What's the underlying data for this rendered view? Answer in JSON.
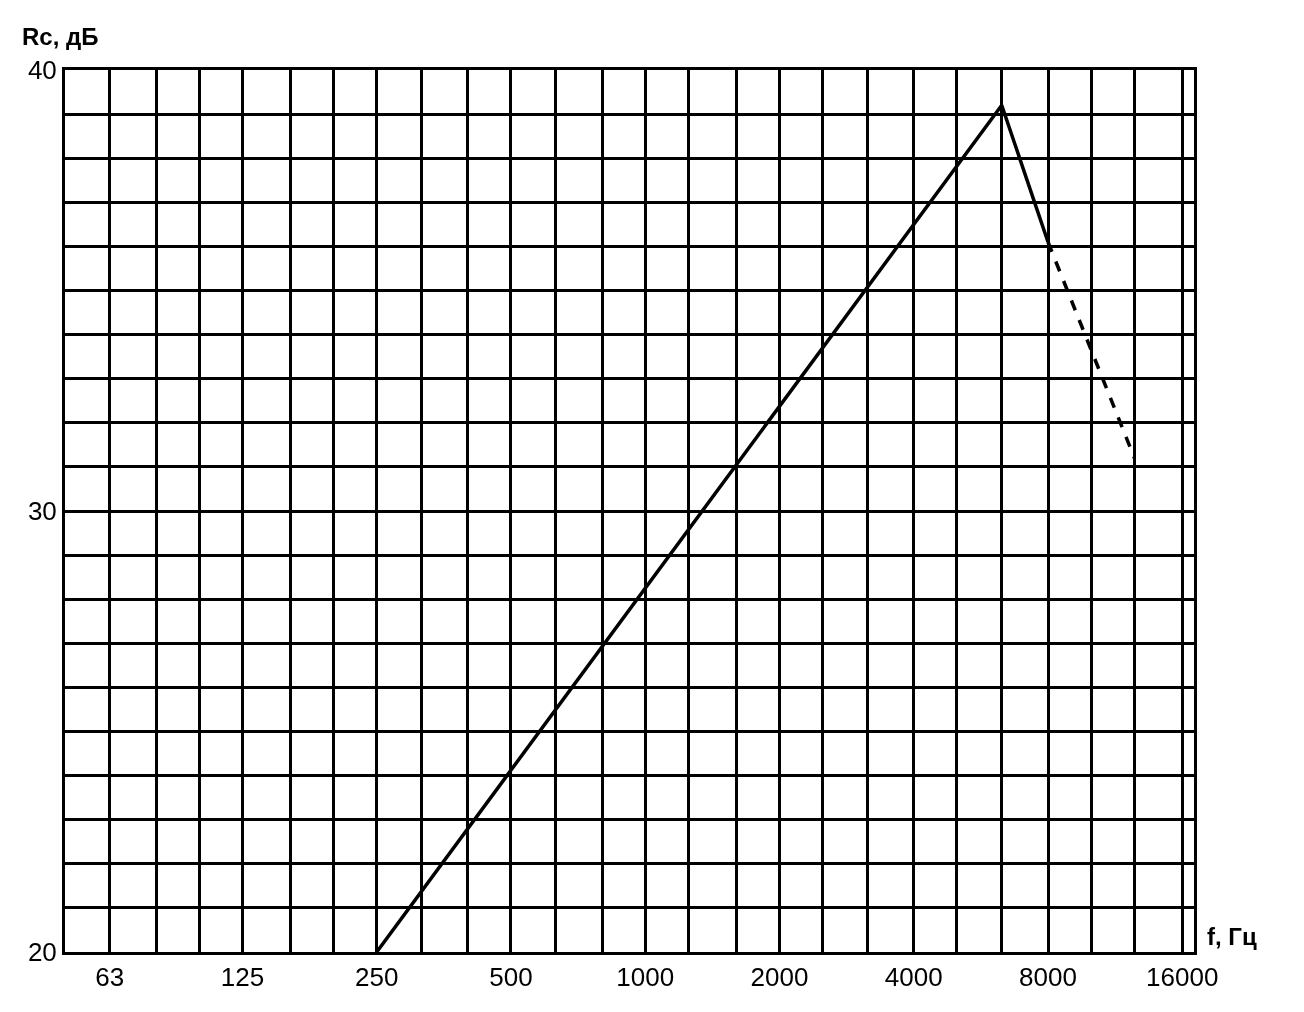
{
  "chart_data": {
    "type": "line",
    "xlabel": "f, Гц",
    "ylabel": "Rc, дБ",
    "log": "x",
    "grid": true,
    "marker": "none",
    "xlim": [
      50,
      17000
    ],
    "ylim": [
      20,
      40
    ],
    "xticks": [
      {
        "value": 63,
        "label": "63"
      },
      {
        "value": 80,
        "label": null
      },
      {
        "value": 100,
        "label": null
      },
      {
        "value": 125,
        "label": "125"
      },
      {
        "value": 160,
        "label": null
      },
      {
        "value": 200,
        "label": null
      },
      {
        "value": 250,
        "label": "250"
      },
      {
        "value": 315,
        "label": null
      },
      {
        "value": 400,
        "label": null
      },
      {
        "value": 500,
        "label": "500"
      },
      {
        "value": 630,
        "label": null
      },
      {
        "value": 800,
        "label": null
      },
      {
        "value": 1000,
        "label": "1000"
      },
      {
        "value": 1250,
        "label": null
      },
      {
        "value": 1600,
        "label": null
      },
      {
        "value": 2000,
        "label": "2000"
      },
      {
        "value": 2500,
        "label": null
      },
      {
        "value": 3150,
        "label": null
      },
      {
        "value": 4000,
        "label": "4000"
      },
      {
        "value": 5000,
        "label": null
      },
      {
        "value": 6300,
        "label": null
      },
      {
        "value": 8000,
        "label": "8000"
      },
      {
        "value": 10000,
        "label": null
      },
      {
        "value": 12500,
        "label": null
      },
      {
        "value": 16000,
        "label": "16000"
      }
    ],
    "yticks": [
      20,
      {
        "value": 21,
        "label": null
      },
      {
        "value": 22,
        "label": null
      },
      {
        "value": 23,
        "label": null
      },
      {
        "value": 24,
        "label": null
      },
      {
        "value": 25,
        "label": null
      },
      {
        "value": 26,
        "label": null
      },
      {
        "value": 27,
        "label": null
      },
      {
        "value": 28,
        "label": null
      },
      {
        "value": 29,
        "label": null
      },
      30,
      {
        "value": 31,
        "label": null
      },
      {
        "value": 32,
        "label": null
      },
      {
        "value": 33,
        "label": null
      },
      {
        "value": 34,
        "label": null
      },
      {
        "value": 35,
        "label": null
      },
      {
        "value": 36,
        "label": null
      },
      {
        "value": 37,
        "label": null
      },
      {
        "value": 38,
        "label": null
      },
      {
        "value": 39,
        "label": null
      },
      40
    ],
    "series": [
      {
        "color": "#000000",
        "line_style": "solid",
        "x": [
          250,
          6300,
          8000
        ],
        "values": [
          20,
          39.2,
          36.1
        ]
      },
      {
        "color": "#000000",
        "line_style": "dashed",
        "x": [
          8000,
          12500
        ],
        "values": [
          36.1,
          31.2
        ]
      }
    ]
  }
}
